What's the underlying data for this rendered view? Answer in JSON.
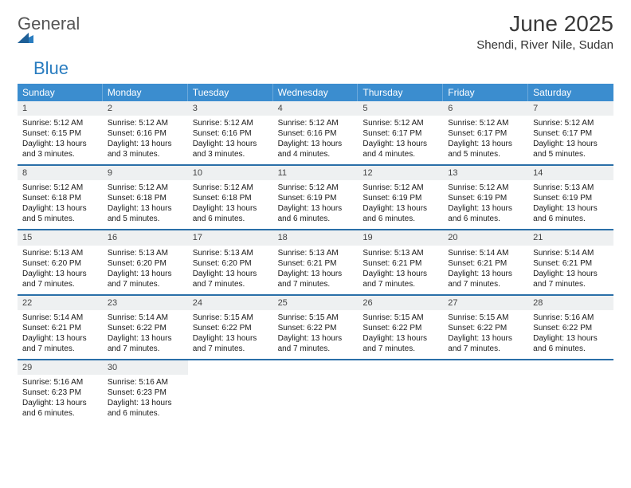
{
  "brand": {
    "name_a": "General",
    "name_b": "Blue"
  },
  "header": {
    "title": "June 2025",
    "location": "Shendi, River Nile, Sudan"
  },
  "colors": {
    "header_bg": "#3b8dcf",
    "week_divider": "#2a6fa8",
    "daynum_bg": "#eef0f1",
    "brand_gray": "#555555",
    "brand_blue": "#2a7dc0",
    "text": "#1a1a1a"
  },
  "fonts": {
    "title_pt": 28,
    "location_pt": 15,
    "dow_pt": 12,
    "daynum_pt": 11,
    "body_pt": 10
  },
  "dow": [
    "Sunday",
    "Monday",
    "Tuesday",
    "Wednesday",
    "Thursday",
    "Friday",
    "Saturday"
  ],
  "weeks": [
    [
      {
        "n": "1",
        "sr": "5:12 AM",
        "ss": "6:15 PM",
        "d1": "13 hours",
        "d2": "and 3 minutes."
      },
      {
        "n": "2",
        "sr": "5:12 AM",
        "ss": "6:16 PM",
        "d1": "13 hours",
        "d2": "and 3 minutes."
      },
      {
        "n": "3",
        "sr": "5:12 AM",
        "ss": "6:16 PM",
        "d1": "13 hours",
        "d2": "and 3 minutes."
      },
      {
        "n": "4",
        "sr": "5:12 AM",
        "ss": "6:16 PM",
        "d1": "13 hours",
        "d2": "and 4 minutes."
      },
      {
        "n": "5",
        "sr": "5:12 AM",
        "ss": "6:17 PM",
        "d1": "13 hours",
        "d2": "and 4 minutes."
      },
      {
        "n": "6",
        "sr": "5:12 AM",
        "ss": "6:17 PM",
        "d1": "13 hours",
        "d2": "and 5 minutes."
      },
      {
        "n": "7",
        "sr": "5:12 AM",
        "ss": "6:17 PM",
        "d1": "13 hours",
        "d2": "and 5 minutes."
      }
    ],
    [
      {
        "n": "8",
        "sr": "5:12 AM",
        "ss": "6:18 PM",
        "d1": "13 hours",
        "d2": "and 5 minutes."
      },
      {
        "n": "9",
        "sr": "5:12 AM",
        "ss": "6:18 PM",
        "d1": "13 hours",
        "d2": "and 5 minutes."
      },
      {
        "n": "10",
        "sr": "5:12 AM",
        "ss": "6:18 PM",
        "d1": "13 hours",
        "d2": "and 6 minutes."
      },
      {
        "n": "11",
        "sr": "5:12 AM",
        "ss": "6:19 PM",
        "d1": "13 hours",
        "d2": "and 6 minutes."
      },
      {
        "n": "12",
        "sr": "5:12 AM",
        "ss": "6:19 PM",
        "d1": "13 hours",
        "d2": "and 6 minutes."
      },
      {
        "n": "13",
        "sr": "5:12 AM",
        "ss": "6:19 PM",
        "d1": "13 hours",
        "d2": "and 6 minutes."
      },
      {
        "n": "14",
        "sr": "5:13 AM",
        "ss": "6:19 PM",
        "d1": "13 hours",
        "d2": "and 6 minutes."
      }
    ],
    [
      {
        "n": "15",
        "sr": "5:13 AM",
        "ss": "6:20 PM",
        "d1": "13 hours",
        "d2": "and 7 minutes."
      },
      {
        "n": "16",
        "sr": "5:13 AM",
        "ss": "6:20 PM",
        "d1": "13 hours",
        "d2": "and 7 minutes."
      },
      {
        "n": "17",
        "sr": "5:13 AM",
        "ss": "6:20 PM",
        "d1": "13 hours",
        "d2": "and 7 minutes."
      },
      {
        "n": "18",
        "sr": "5:13 AM",
        "ss": "6:21 PM",
        "d1": "13 hours",
        "d2": "and 7 minutes."
      },
      {
        "n": "19",
        "sr": "5:13 AM",
        "ss": "6:21 PM",
        "d1": "13 hours",
        "d2": "and 7 minutes."
      },
      {
        "n": "20",
        "sr": "5:14 AM",
        "ss": "6:21 PM",
        "d1": "13 hours",
        "d2": "and 7 minutes."
      },
      {
        "n": "21",
        "sr": "5:14 AM",
        "ss": "6:21 PM",
        "d1": "13 hours",
        "d2": "and 7 minutes."
      }
    ],
    [
      {
        "n": "22",
        "sr": "5:14 AM",
        "ss": "6:21 PM",
        "d1": "13 hours",
        "d2": "and 7 minutes."
      },
      {
        "n": "23",
        "sr": "5:14 AM",
        "ss": "6:22 PM",
        "d1": "13 hours",
        "d2": "and 7 minutes."
      },
      {
        "n": "24",
        "sr": "5:15 AM",
        "ss": "6:22 PM",
        "d1": "13 hours",
        "d2": "and 7 minutes."
      },
      {
        "n": "25",
        "sr": "5:15 AM",
        "ss": "6:22 PM",
        "d1": "13 hours",
        "d2": "and 7 minutes."
      },
      {
        "n": "26",
        "sr": "5:15 AM",
        "ss": "6:22 PM",
        "d1": "13 hours",
        "d2": "and 7 minutes."
      },
      {
        "n": "27",
        "sr": "5:15 AM",
        "ss": "6:22 PM",
        "d1": "13 hours",
        "d2": "and 7 minutes."
      },
      {
        "n": "28",
        "sr": "5:16 AM",
        "ss": "6:22 PM",
        "d1": "13 hours",
        "d2": "and 6 minutes."
      }
    ],
    [
      {
        "n": "29",
        "sr": "5:16 AM",
        "ss": "6:23 PM",
        "d1": "13 hours",
        "d2": "and 6 minutes."
      },
      {
        "n": "30",
        "sr": "5:16 AM",
        "ss": "6:23 PM",
        "d1": "13 hours",
        "d2": "and 6 minutes."
      },
      null,
      null,
      null,
      null,
      null
    ]
  ],
  "labels": {
    "sunrise": "Sunrise:",
    "sunset": "Sunset:",
    "daylight": "Daylight:"
  }
}
